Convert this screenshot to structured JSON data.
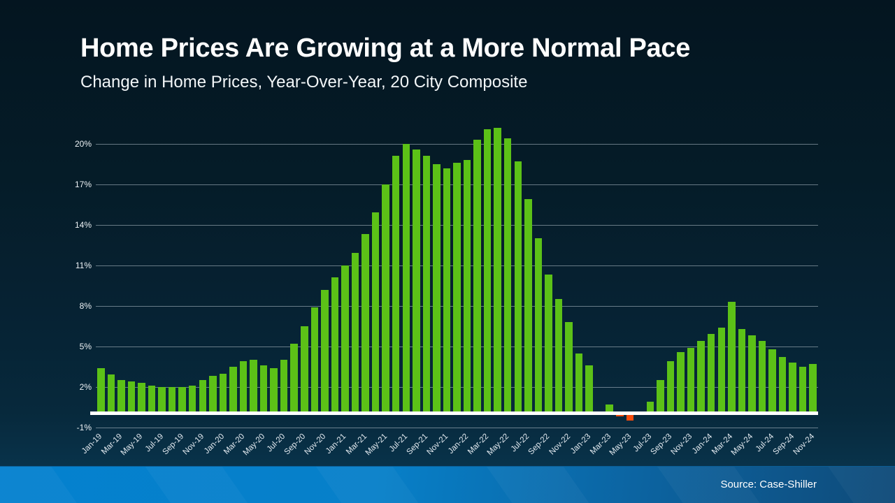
{
  "slide": {
    "title": "Home Prices Are Growing at a More Normal Pace",
    "subtitle": "Change in Home Prices, Year-Over-Year, 20 City Composite",
    "source": "Source: Case-Shiller"
  },
  "colors": {
    "positive_bar": "#5cc117",
    "negative_bar": "#f94b0c",
    "baseline": "#ffffff",
    "gridline": "#8a98a2",
    "background_top": "#041520",
    "background_bottom": "#0a3954",
    "band_left": "#0481cf",
    "band_right": "#0f4a78",
    "text": "#ffffff"
  },
  "chart_data": {
    "type": "bar",
    "title": "Home Prices Are Growing at a More Normal Pace",
    "subtitle": "Change in Home Prices, Year-Over-Year, 20 City Composite",
    "source_note": "Source: Case-Shiller",
    "xlabel": "",
    "ylabel": "",
    "ylim": [
      -1.5,
      21.8
    ],
    "yticks": [
      -1,
      2,
      5,
      8,
      11,
      14,
      17,
      20
    ],
    "ytick_suffix": "%",
    "grid": true,
    "legend": "none",
    "x_label_every": 2,
    "categories": [
      "Jan-19",
      "Feb-19",
      "Mar-19",
      "Apr-19",
      "May-19",
      "Jun-19",
      "Jul-19",
      "Aug-19",
      "Sep-19",
      "Oct-19",
      "Nov-19",
      "Dec-19",
      "Jan-20",
      "Feb-20",
      "Mar-20",
      "Apr-20",
      "May-20",
      "Jun-20",
      "Jul-20",
      "Aug-20",
      "Sep-20",
      "Oct-20",
      "Nov-20",
      "Dec-20",
      "Jan-21",
      "Feb-21",
      "Mar-21",
      "Apr-21",
      "May-21",
      "Jun-21",
      "Jul-21",
      "Aug-21",
      "Sep-21",
      "Oct-21",
      "Nov-21",
      "Dec-21",
      "Jan-22",
      "Feb-22",
      "Mar-22",
      "Apr-22",
      "May-22",
      "Jun-22",
      "Jul-22",
      "Aug-22",
      "Sep-22",
      "Oct-22",
      "Nov-22",
      "Dec-22",
      "Jan-23",
      "Feb-23",
      "Mar-23",
      "Apr-23",
      "May-23",
      "Jun-23",
      "Jul-23",
      "Aug-23",
      "Sep-23",
      "Oct-23",
      "Nov-23",
      "Dec-23",
      "Jan-24",
      "Feb-24",
      "Mar-24",
      "Apr-24",
      "May-24",
      "Jun-24",
      "Jul-24",
      "Aug-24",
      "Sep-24",
      "Oct-24",
      "Nov-24"
    ],
    "values": [
      3.4,
      2.9,
      2.5,
      2.4,
      2.3,
      2.1,
      2.0,
      2.0,
      2.0,
      2.1,
      2.5,
      2.8,
      3.0,
      3.5,
      3.9,
      4.0,
      3.6,
      3.4,
      4.0,
      5.2,
      6.5,
      7.9,
      9.2,
      10.1,
      11.0,
      11.9,
      13.3,
      14.9,
      17.0,
      19.1,
      20.0,
      19.6,
      19.1,
      18.5,
      18.2,
      18.6,
      18.8,
      20.3,
      21.1,
      21.2,
      20.4,
      18.7,
      15.9,
      13.0,
      10.3,
      8.5,
      6.8,
      4.5,
      3.6,
      0.2,
      0.7,
      -0.1,
      -0.4,
      0.0,
      0.9,
      2.5,
      3.9,
      4.6,
      4.9,
      5.4,
      5.9,
      6.4,
      8.3,
      6.3,
      5.8,
      5.4,
      4.8,
      4.2,
      3.8,
      3.5,
      3.7
    ]
  }
}
